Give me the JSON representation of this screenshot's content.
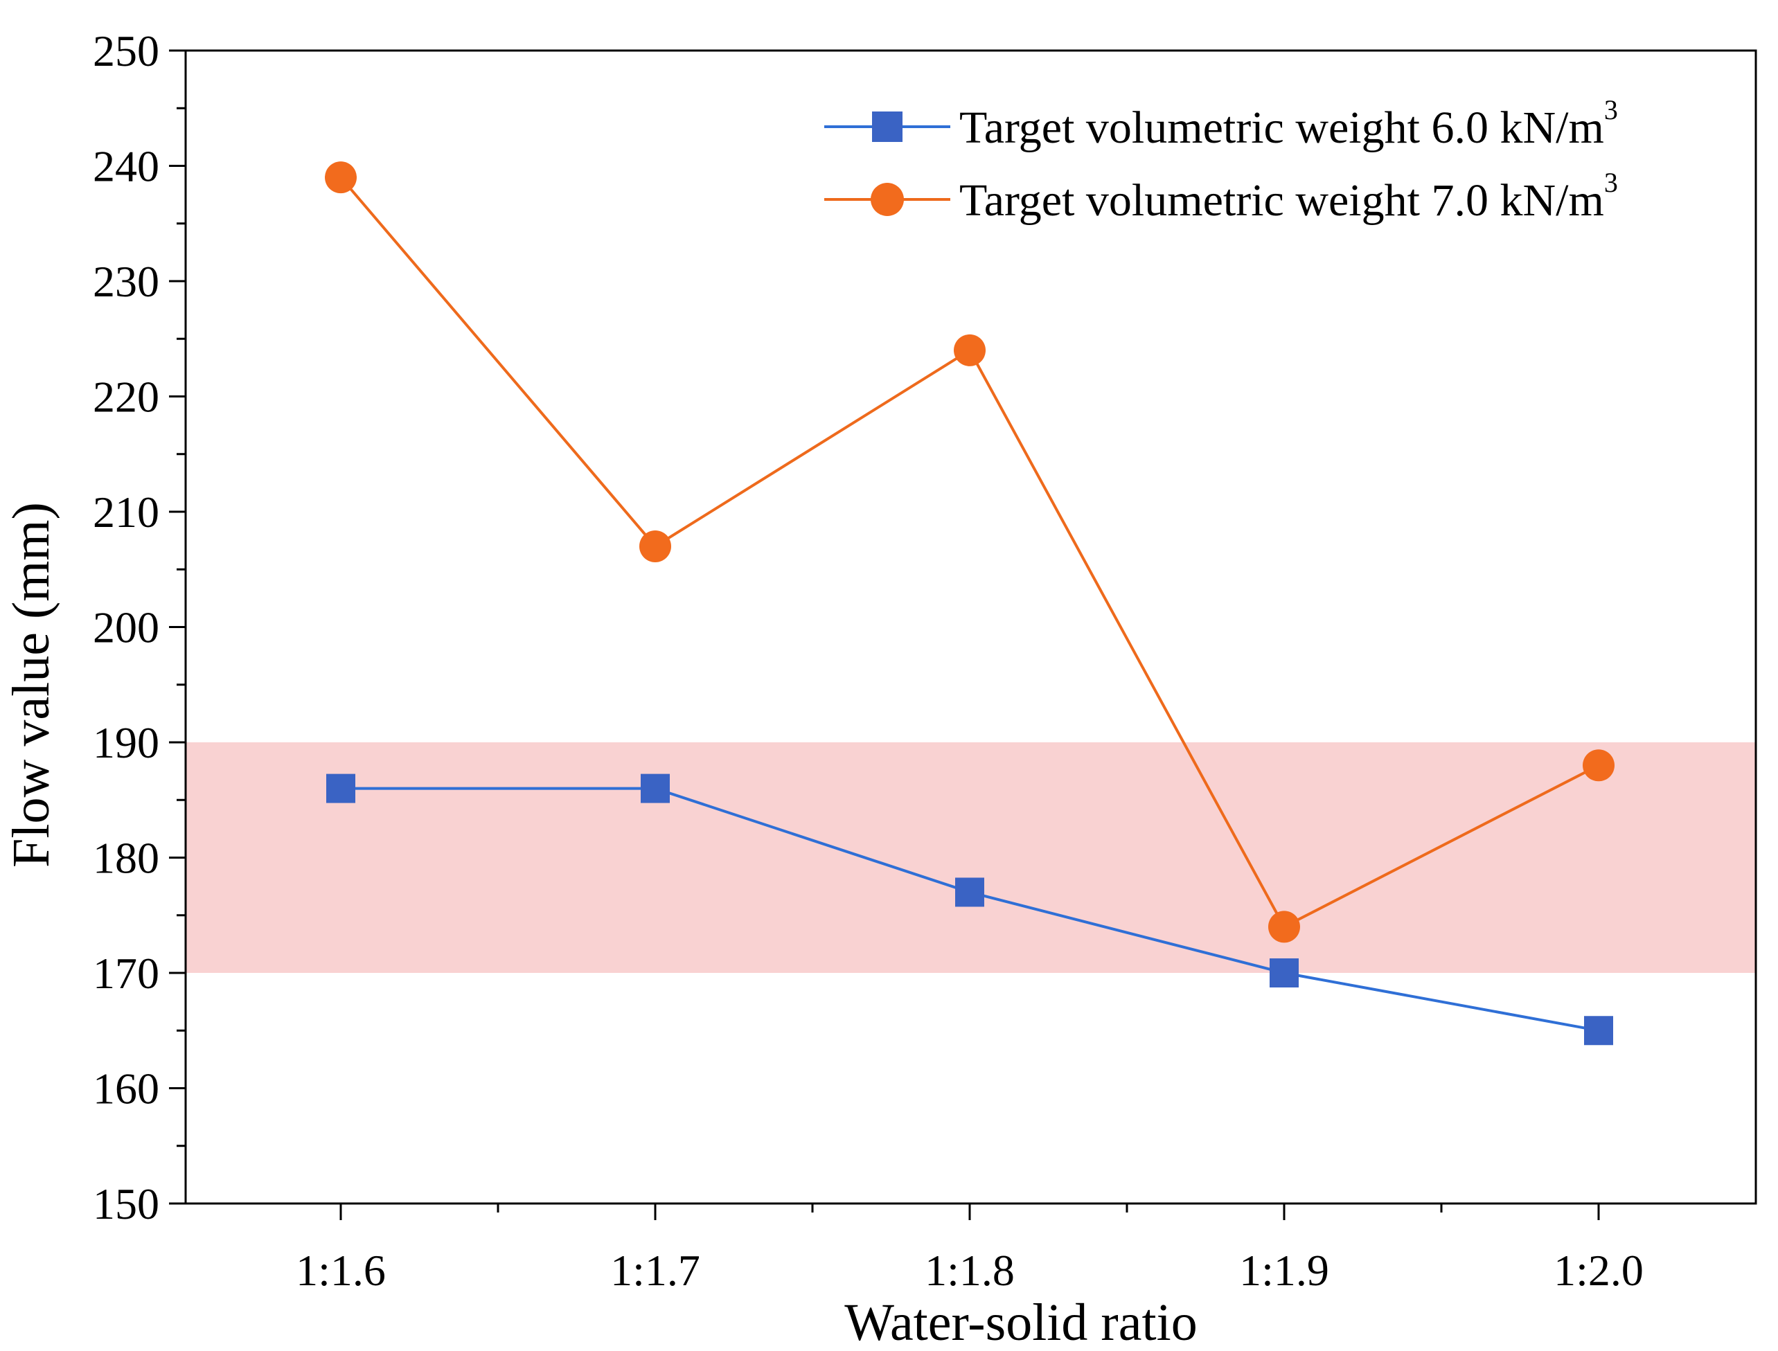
{
  "chart_data": {
    "type": "line",
    "title": "",
    "xlabel": "Water-solid ratio",
    "ylabel": "Flow value (mm)",
    "categories": [
      "1:1.6",
      "1:1.7",
      "1:1.8",
      "1:1.9",
      "1:2.0"
    ],
    "ylim": [
      150,
      250
    ],
    "yticks": [
      "150",
      "160",
      "170",
      "180",
      "190",
      "200",
      "210",
      "220",
      "230",
      "240",
      "250"
    ],
    "grid": false,
    "legend_position": "top-right",
    "highlight_band": {
      "y_from": 170,
      "y_to": 190,
      "color": "#f9d2d2"
    },
    "series": [
      {
        "name": "Target volumetric weight 6.0 kN/m",
        "superscript": "3",
        "marker": "square",
        "color": "#2f6fd6",
        "marker_color": "#3a63c4",
        "values": [
          186,
          186,
          177,
          170,
          165
        ]
      },
      {
        "name": "Target volumetric weight 7.0 kN/m",
        "superscript": "3",
        "marker": "circle",
        "color": "#ee6a1c",
        "marker_color": "#f26b1d",
        "values": [
          239,
          207,
          224,
          174,
          188
        ]
      }
    ]
  }
}
